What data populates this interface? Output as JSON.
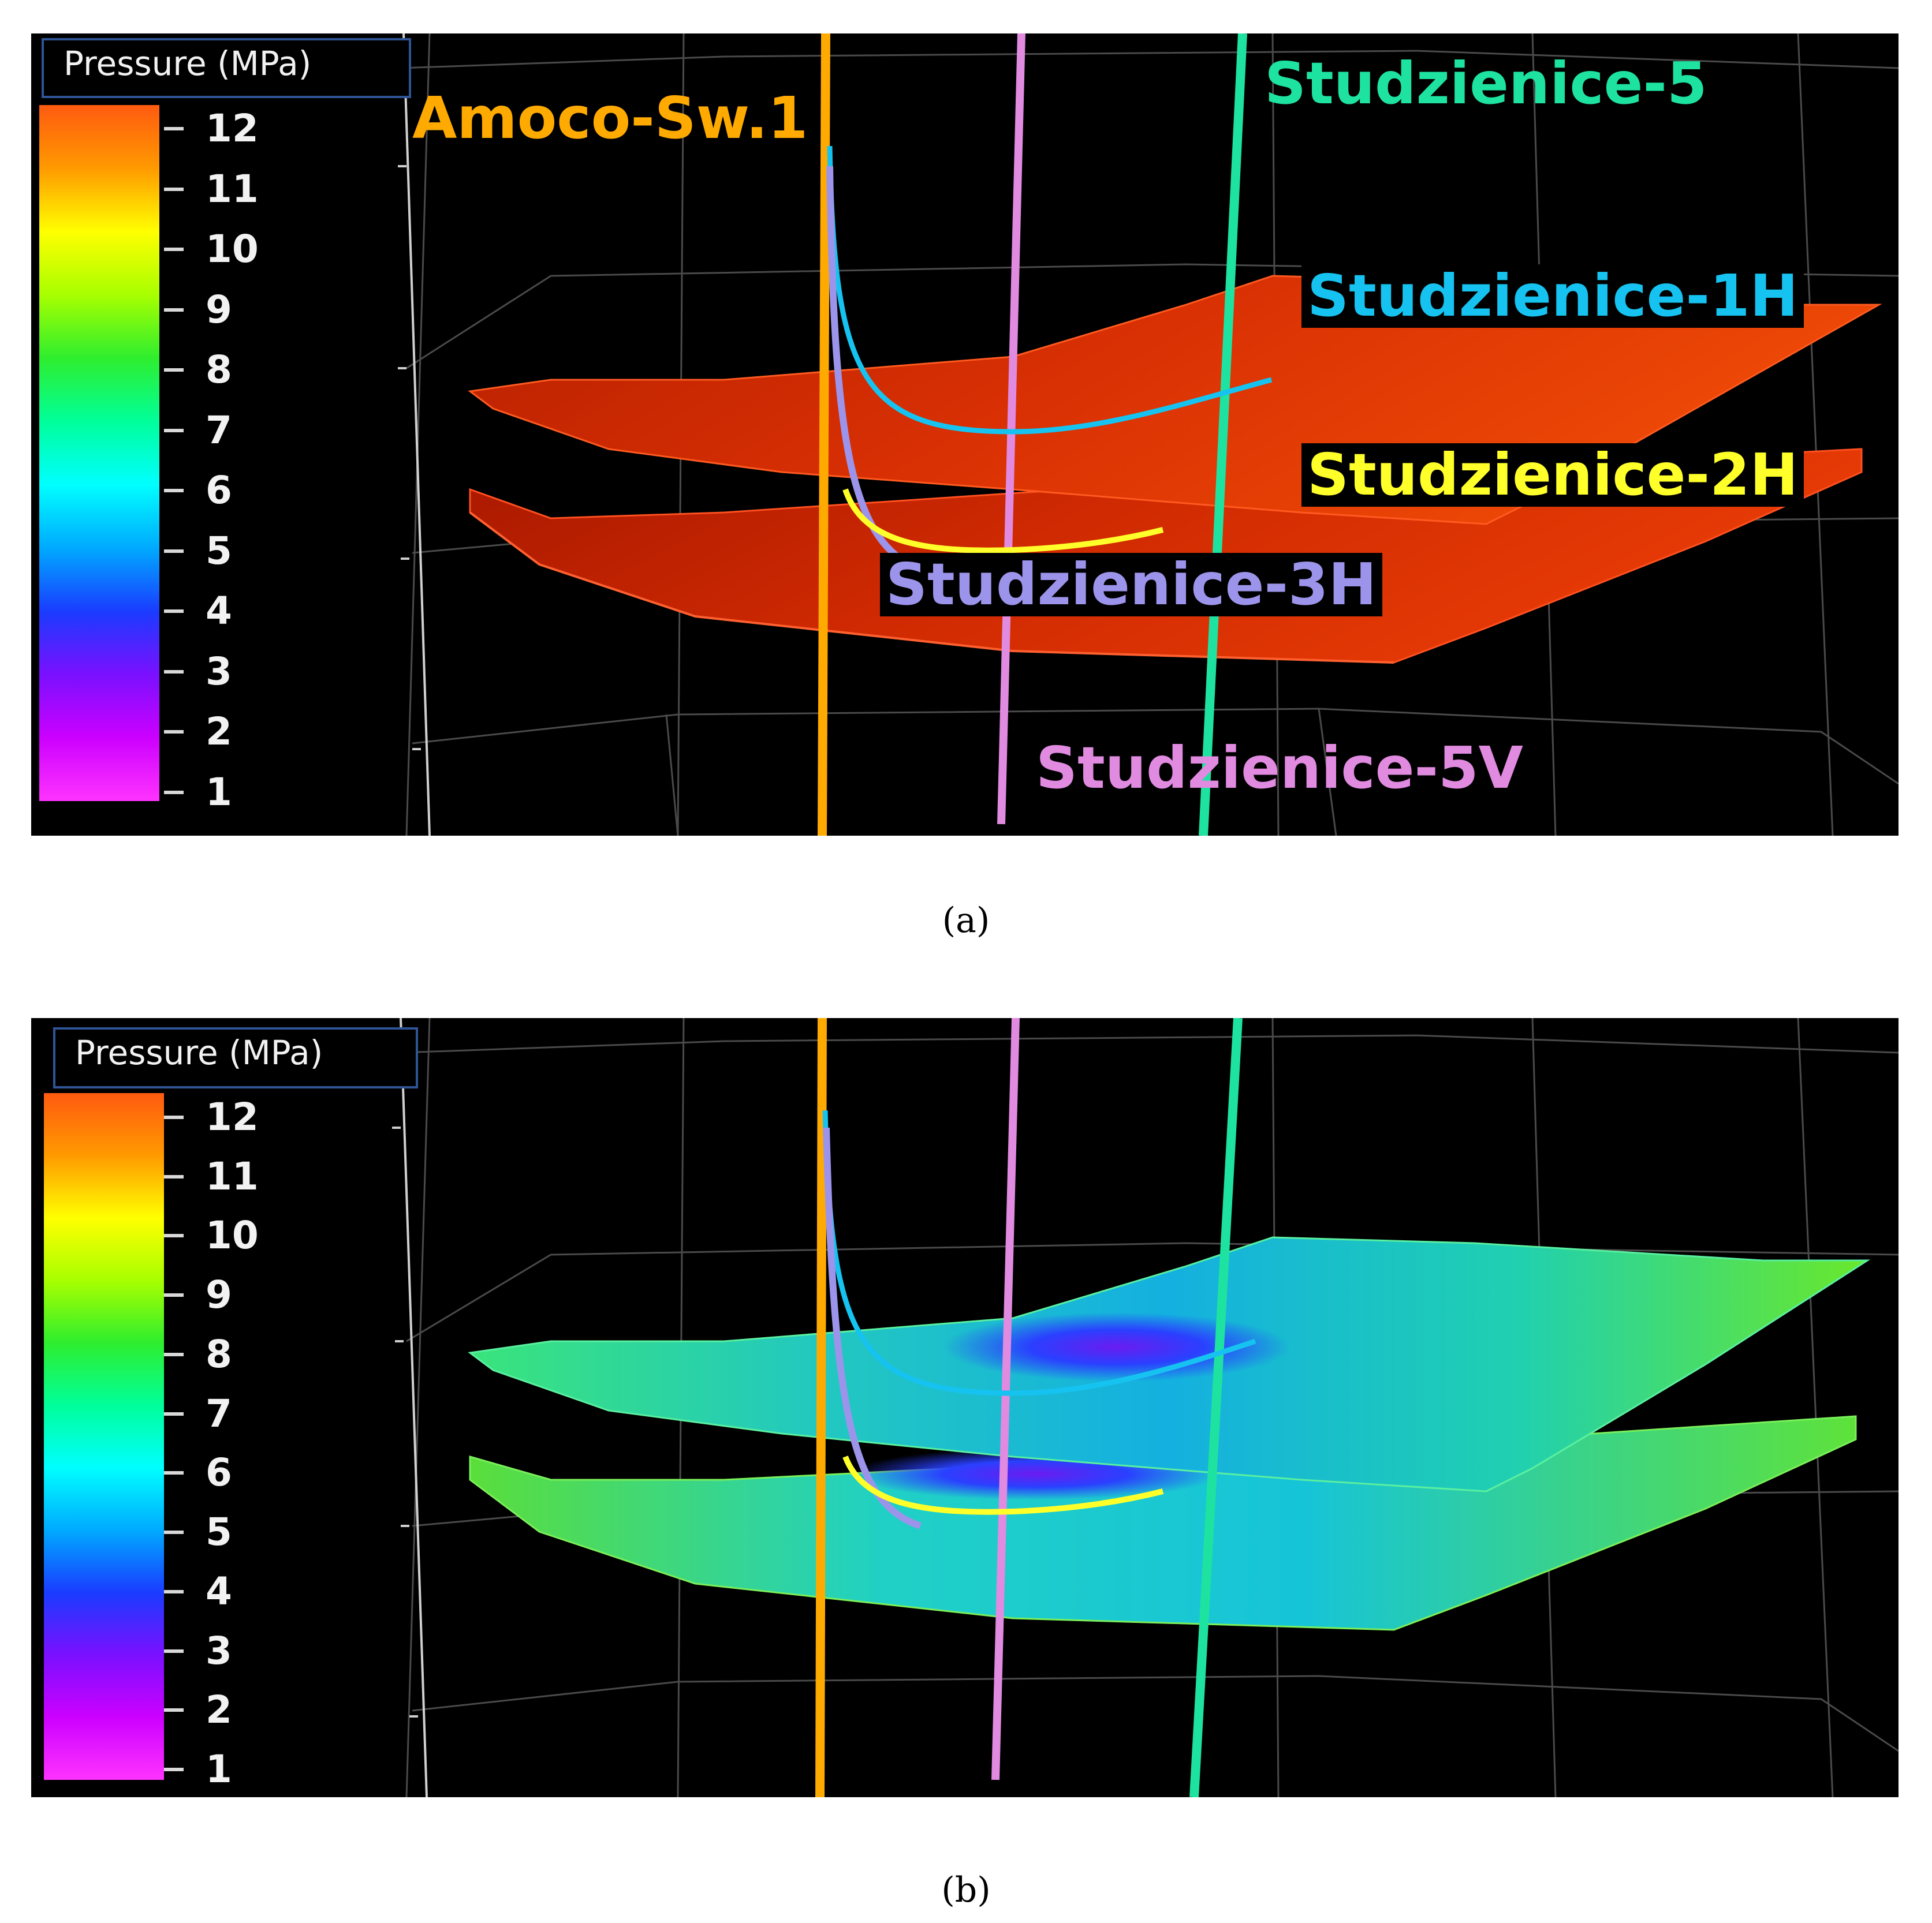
{
  "legend": {
    "title": "Pressure (MPa)",
    "ticks": [
      "12",
      "11",
      "10",
      "9",
      "8",
      "7",
      "6",
      "5",
      "4",
      "3",
      "2",
      "1"
    ],
    "gradient_colors": [
      "#ff5a10",
      "#ff9a00",
      "#ffff00",
      "#a8ff00",
      "#2eee2e",
      "#00ff9a",
      "#00ffff",
      "#00aaff",
      "#1a3cff",
      "#7a10ff",
      "#cc00ff",
      "#ff33ff"
    ]
  },
  "wells": {
    "amoco": {
      "label": "Amoco-Sw.1",
      "color": "#ffaa00"
    },
    "s5": {
      "label": "Studzienice-5",
      "color": "#1ee3a0"
    },
    "s1h": {
      "label": "Studzienice-1H",
      "color": "#16c3f0"
    },
    "s2h": {
      "label": "Studzienice-2H",
      "color": "#ffff2a"
    },
    "s3h": {
      "label": "Studzienice-3H",
      "color": "#9c94ea"
    },
    "s5v": {
      "label": "Studzienice-5V",
      "color": "#e08ae0"
    }
  },
  "surface_colors": {
    "a_top": "#e33a05",
    "a_bottom": "#cc2800",
    "b_top": "#1ccaa6",
    "b_bottom": "#22d0b8",
    "b_low_pressure": "#6a1cf0"
  },
  "captions": {
    "a": "(a)",
    "b": "(b)"
  }
}
